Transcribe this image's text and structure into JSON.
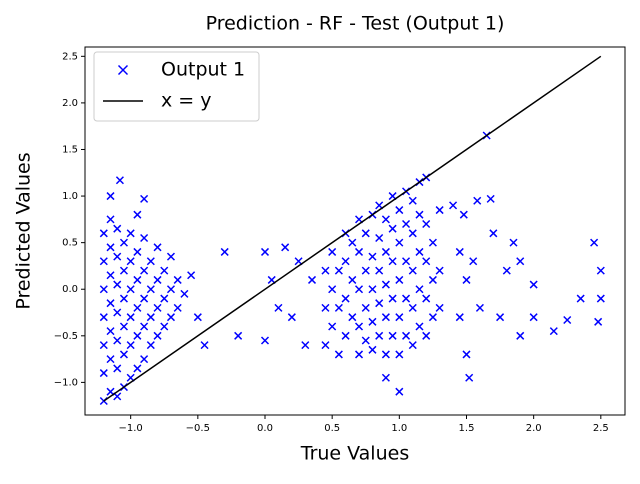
{
  "chart_data": {
    "type": "scatter",
    "title": "Prediction - RF - Test (Output 1)",
    "x_label": "True Values",
    "y_label": "Predicted Values",
    "xlim": [
      -1.34,
      2.68
    ],
    "ylim": [
      -1.35,
      2.6
    ],
    "xticks": [
      {
        "value": -1.0,
        "label": "−1.0"
      },
      {
        "value": -0.5,
        "label": "−0.5"
      },
      {
        "value": 0,
        "label": "0.0"
      },
      0.5,
      {
        "value": 1,
        "label": "1.0"
      },
      1.5,
      {
        "value": 2,
        "label": "2.0"
      },
      2.5
    ],
    "yticks": [
      {
        "value": -1.0,
        "label": "−1.0"
      },
      {
        "value": -0.5,
        "label": "−0.5"
      },
      {
        "value": 0,
        "label": "0.0"
      },
      0.5,
      {
        "value": 1,
        "label": "1.0"
      },
      1.5,
      {
        "value": 2,
        "label": "2.0"
      },
      2.5
    ],
    "legend": "upper left",
    "series": [
      {
        "name": "Output 1",
        "color": "#0000ff",
        "marker": "x",
        "x": [
          -1.2,
          -1.2,
          -1.2,
          -1.2,
          -1.2,
          -1.2,
          -1.2,
          -1.15,
          -1.15,
          -1.15,
          -1.15,
          -1.15,
          -1.15,
          -1.15,
          -1.1,
          -1.1,
          -1.1,
          -1.1,
          -1.1,
          -1.1,
          -1.1,
          -1.05,
          -1.05,
          -1.05,
          -1.05,
          -1.05,
          -1.05,
          -1,
          -1,
          -1,
          -1,
          -1,
          -1,
          -0.95,
          -0.95,
          -0.95,
          -0.95,
          -0.95,
          -0.9,
          -0.9,
          -0.9,
          -0.9,
          -0.9,
          -0.85,
          -0.85,
          -0.85,
          -0.85,
          -0.8,
          -0.8,
          -0.8,
          -0.8,
          -0.75,
          -0.75,
          -0.75,
          -0.7,
          -0.7,
          -0.7,
          -0.65,
          -0.65,
          -0.6,
          -0.55,
          -0.5,
          -0.45,
          -1.15,
          -1.08,
          -0.9,
          -0.95,
          -0.3,
          -0.2,
          0,
          0,
          0.05,
          0.1,
          0.15,
          0.2,
          0.25,
          0.3,
          0.35,
          0.45,
          0.45,
          0.45,
          0.5,
          0.5,
          0.5,
          0.55,
          0.55,
          0.55,
          0.6,
          0.6,
          0.6,
          0.6,
          0.65,
          0.65,
          0.65,
          0.7,
          0.7,
          0.7,
          0.7,
          0.7,
          0.75,
          0.75,
          0.75,
          0.75,
          0.8,
          0.8,
          0.8,
          0.8,
          0.8,
          0.85,
          0.85,
          0.85,
          0.85,
          0.85,
          0.9,
          0.9,
          0.9,
          0.9,
          0.9,
          0.9,
          0.95,
          0.95,
          0.95,
          0.95,
          0.95,
          1,
          1,
          1,
          1,
          1,
          1,
          1.05,
          1.05,
          1.05,
          1.05,
          1.05,
          1.1,
          1.1,
          1.1,
          1.1,
          1.1,
          1.15,
          1.15,
          1.15,
          1.15,
          1.15,
          1.2,
          1.2,
          1.2,
          1.2,
          1.2,
          1.25,
          1.25,
          1.25,
          1.3,
          1.3,
          1.3,
          1.4,
          1.45,
          1.45,
          1.5,
          1.5,
          1.52,
          1.55,
          1.6,
          1.65,
          1.7,
          1.75,
          1.8,
          1.85,
          1.9,
          1.9,
          2.0,
          2.0,
          2.15,
          2.25,
          2.35,
          2.45,
          2.48,
          2.5,
          2.5,
          1.48,
          1.58,
          1.68
        ],
        "y": [
          -1.2,
          -0.9,
          -0.6,
          -0.3,
          0,
          0.3,
          0.6,
          -1.1,
          -0.75,
          -0.45,
          -0.15,
          0.15,
          0.45,
          0.75,
          -1.15,
          -0.85,
          -0.55,
          -0.25,
          0.05,
          0.35,
          0.65,
          -1.05,
          -0.7,
          -0.4,
          -0.1,
          0.2,
          0.5,
          -0.95,
          -0.6,
          -0.3,
          0,
          0.3,
          0.6,
          -0.85,
          -0.5,
          -0.2,
          0.1,
          0.4,
          -0.75,
          -0.4,
          -0.1,
          0.2,
          0.55,
          -0.6,
          -0.3,
          0,
          0.3,
          -0.5,
          -0.2,
          0.1,
          0.45,
          -0.4,
          -0.1,
          0.2,
          -0.3,
          0,
          0.35,
          -0.2,
          0.1,
          -0.05,
          0.15,
          -0.3,
          -0.6,
          1.0,
          1.17,
          0.97,
          0.8,
          0.4,
          -0.5,
          0.4,
          -0.55,
          0.1,
          -0.2,
          0.45,
          -0.3,
          0.3,
          -0.6,
          0.1,
          -0.6,
          -0.2,
          0.2,
          -0.4,
          0,
          0.4,
          -0.7,
          -0.2,
          0.2,
          -0.5,
          -0.1,
          0.3,
          0.6,
          -0.3,
          0.1,
          0.5,
          -0.7,
          -0.4,
          0,
          0.4,
          0.75,
          -0.55,
          -0.2,
          0.2,
          0.6,
          -0.65,
          -0.35,
          0,
          0.35,
          0.8,
          -0.5,
          -0.15,
          0.2,
          0.55,
          0.9,
          -0.7,
          -0.3,
          0.05,
          0.4,
          0.75,
          -0.95,
          -0.5,
          -0.1,
          0.3,
          0.65,
          1.0,
          -0.7,
          -0.3,
          0.1,
          0.5,
          0.85,
          -1.1,
          -0.5,
          -0.1,
          0.3,
          0.7,
          1.05,
          -0.6,
          -0.2,
          0.2,
          0.6,
          0.95,
          -0.4,
          0,
          0.4,
          0.8,
          1.15,
          -0.5,
          -0.1,
          0.3,
          0.7,
          1.2,
          -0.3,
          0.1,
          0.5,
          -0.2,
          0.2,
          0.85,
          0.9,
          0.4,
          -0.3,
          0.1,
          -0.7,
          -0.95,
          0.3,
          -0.2,
          1.65,
          0.6,
          -0.3,
          0.2,
          0.5,
          -0.5,
          0.3,
          0.05,
          -0.3,
          -0.45,
          -0.33,
          -0.1,
          0.5,
          -0.35,
          0.2,
          -0.1,
          0.8,
          0.95,
          0.97
        ]
      },
      {
        "name": "x = y",
        "color": "#000000",
        "marker": "line",
        "x": [
          -1.2,
          2.5
        ],
        "y": [
          -1.2,
          2.5
        ]
      }
    ]
  }
}
